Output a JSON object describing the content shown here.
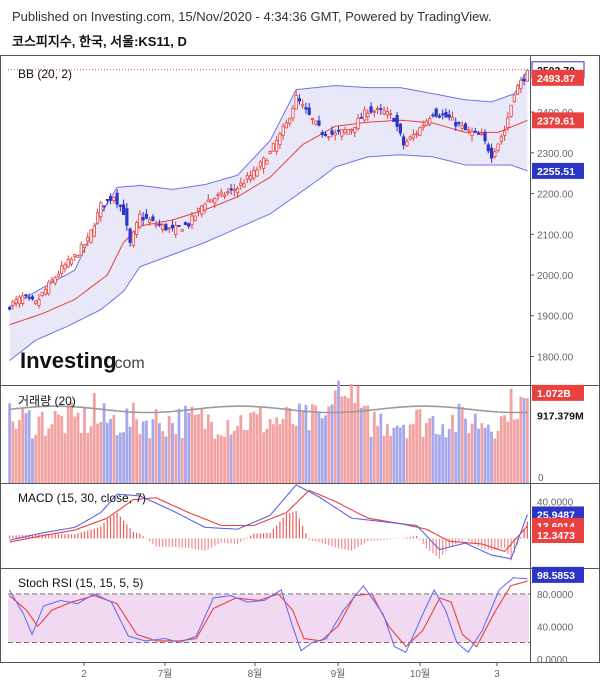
{
  "header": {
    "published": "Published on Investing.com, 15/Nov/2020 - 4:34:36 GMT, Powered by TradingView.",
    "symbol": "코스피지수, 한국, 서울:KS11, D"
  },
  "watermark": {
    "brand": "Investing",
    "suffix": ".com"
  },
  "colors": {
    "up": "#e8413f",
    "down": "#2d35c7",
    "band": "#6f73e6",
    "band_fill": "#e6e6f7",
    "basis": "#e8413f",
    "volume_up": "#f3a2a2",
    "volume_down": "#a6a8ee",
    "volume_ma": "#9a9a9a",
    "macd": "#5b64e8",
    "signal": "#e8413f",
    "stoch_k": "#6b6ff0",
    "stoch_d": "#e8413f",
    "rsi_band": "#f1d9f1"
  },
  "chart_data": [
    {
      "type": "candlestick",
      "panel": "price",
      "title": "BB (20, 2)",
      "ylim": [
        1730,
        2540
      ],
      "y_ticks": [
        "2400.00",
        "2300.00",
        "2200.00",
        "2100.00",
        "2000.00",
        "1900.00",
        "1800.00"
      ],
      "x_ticks": [
        "2",
        "7월",
        "8월",
        "9월",
        "10월",
        "3"
      ],
      "last_price_line": 2503.7,
      "tags": [
        {
          "label": "2503.70",
          "value": 2503.7,
          "style": "outline"
        },
        {
          "label": "2493.87",
          "value": 2493.87,
          "style": "red"
        },
        {
          "label": "2379.61",
          "value": 2379.61,
          "style": "red"
        },
        {
          "label": "2255.51",
          "value": 2255.51,
          "style": "blue"
        }
      ],
      "close_anchors": [
        [
          0,
          1925
        ],
        [
          4,
          1945
        ],
        [
          8,
          1930
        ],
        [
          12,
          1975
        ],
        [
          16,
          2015
        ],
        [
          20,
          2045
        ],
        [
          24,
          2085
        ],
        [
          28,
          2170
        ],
        [
          32,
          2195
        ],
        [
          35,
          2155
        ],
        [
          37,
          2075
        ],
        [
          40,
          2145
        ],
        [
          45,
          2125
        ],
        [
          50,
          2110
        ],
        [
          55,
          2125
        ],
        [
          60,
          2180
        ],
        [
          65,
          2195
        ],
        [
          70,
          2215
        ],
        [
          75,
          2250
        ],
        [
          80,
          2300
        ],
        [
          85,
          2370
        ],
        [
          88,
          2435
        ],
        [
          92,
          2390
        ],
        [
          96,
          2350
        ],
        [
          100,
          2345
        ],
        [
          105,
          2360
        ],
        [
          110,
          2405
        ],
        [
          115,
          2400
        ],
        [
          118,
          2385
        ],
        [
          121,
          2320
        ],
        [
          125,
          2350
        ],
        [
          130,
          2400
        ],
        [
          135,
          2385
        ],
        [
          140,
          2355
        ],
        [
          145,
          2340
        ],
        [
          148,
          2295
        ],
        [
          152,
          2355
        ],
        [
          155,
          2450
        ],
        [
          158,
          2485
        ],
        [
          159,
          2493.87
        ]
      ],
      "bb_basis_anchors": [
        [
          0,
          1878
        ],
        [
          10,
          1905
        ],
        [
          20,
          1940
        ],
        [
          30,
          2000
        ],
        [
          35,
          2080
        ],
        [
          40,
          2120
        ],
        [
          50,
          2135
        ],
        [
          60,
          2160
        ],
        [
          70,
          2192
        ],
        [
          80,
          2240
        ],
        [
          90,
          2320
        ],
        [
          100,
          2365
        ],
        [
          110,
          2375
        ],
        [
          120,
          2380
        ],
        [
          130,
          2373
        ],
        [
          140,
          2350
        ],
        [
          150,
          2350
        ],
        [
          159,
          2379.61
        ]
      ],
      "bb_upper_anchors": [
        [
          0,
          1922
        ],
        [
          10,
          1968
        ],
        [
          20,
          2012
        ],
        [
          28,
          2150
        ],
        [
          33,
          2215
        ],
        [
          40,
          2220
        ],
        [
          50,
          2210
        ],
        [
          60,
          2222
        ],
        [
          70,
          2245
        ],
        [
          80,
          2330
        ],
        [
          88,
          2455
        ],
        [
          100,
          2465
        ],
        [
          110,
          2460
        ],
        [
          120,
          2460
        ],
        [
          130,
          2445
        ],
        [
          140,
          2430
        ],
        [
          148,
          2425
        ],
        [
          155,
          2445
        ],
        [
          159,
          2503.7
        ]
      ],
      "bb_lower_anchors": [
        [
          0,
          1790
        ],
        [
          8,
          1840
        ],
        [
          18,
          1875
        ],
        [
          28,
          1915
        ],
        [
          35,
          1960
        ],
        [
          40,
          2020
        ],
        [
          50,
          2050
        ],
        [
          60,
          2080
        ],
        [
          70,
          2115
        ],
        [
          80,
          2150
        ],
        [
          88,
          2195
        ],
        [
          95,
          2235
        ],
        [
          100,
          2265
        ],
        [
          110,
          2290
        ],
        [
          120,
          2295
        ],
        [
          130,
          2290
        ],
        [
          140,
          2270
        ],
        [
          148,
          2270
        ],
        [
          154,
          2270
        ],
        [
          159,
          2255.51
        ]
      ]
    },
    {
      "type": "bar",
      "panel": "volume",
      "title": "거래량 (20)",
      "ylim": [
        0,
        1.22
      ],
      "unit": "B",
      "y_ticks": [
        "0"
      ],
      "tags": [
        {
          "label": "1.072B",
          "value": 1.072,
          "style": "red"
        },
        {
          "label": "917.379M",
          "value": 0.917,
          "style": "dark"
        }
      ],
      "ma_level": 0.917
    },
    {
      "type": "line",
      "panel": "macd",
      "title": "MACD (15, 30, close, 7)",
      "ylim": [
        -32,
        60
      ],
      "y_ticks": [
        "40.0000"
      ],
      "tags": [
        {
          "label": "25.9487",
          "value": 25.9487,
          "style": "blue"
        },
        {
          "label": "13.6014",
          "value": 13.6014,
          "style": "red"
        },
        {
          "label": "12.3473",
          "value": 12.3473,
          "style": "red"
        }
      ],
      "series": [
        {
          "name": "MACD",
          "anchors": [
            [
              0,
              -2
            ],
            [
              10,
              6
            ],
            [
              20,
              12
            ],
            [
              28,
              28
            ],
            [
              33,
              48
            ],
            [
              40,
              46
            ],
            [
              50,
              30
            ],
            [
              60,
              12
            ],
            [
              70,
              10
            ],
            [
              80,
              25
            ],
            [
              88,
              58
            ],
            [
              95,
              45
            ],
            [
              105,
              22
            ],
            [
              115,
              18
            ],
            [
              125,
              14
            ],
            [
              132,
              -12
            ],
            [
              140,
              -5
            ],
            [
              148,
              -18
            ],
            [
              154,
              -22
            ],
            [
              159,
              25.95
            ]
          ]
        },
        {
          "name": "Signal",
          "anchors": [
            [
              0,
              -4
            ],
            [
              10,
              3
            ],
            [
              20,
              9
            ],
            [
              30,
              22
            ],
            [
              38,
              42
            ],
            [
              45,
              44
            ],
            [
              55,
              28
            ],
            [
              65,
              14
            ],
            [
              75,
              14
            ],
            [
              85,
              28
            ],
            [
              92,
              52
            ],
            [
              100,
              40
            ],
            [
              110,
              22
            ],
            [
              120,
              16
            ],
            [
              128,
              10
            ],
            [
              135,
              -3
            ],
            [
              145,
              -6
            ],
            [
              152,
              -14
            ],
            [
              159,
              13.6
            ]
          ]
        }
      ],
      "histogram_last": 12.3473
    },
    {
      "type": "line",
      "panel": "stoch_rsi",
      "title": "Stoch RSI (15, 15, 5, 5)",
      "ylim": [
        -4,
        112
      ],
      "y_ticks": [
        "80.0000",
        "40.0000",
        "0.0000"
      ],
      "bands": [
        20,
        80
      ],
      "tags": [
        {
          "label": "98.5853",
          "value": 98.5853,
          "style": "blue"
        }
      ],
      "series": [
        {
          "name": "K",
          "anchors": [
            [
              0,
              85
            ],
            [
              5,
              55
            ],
            [
              8,
              30
            ],
            [
              12,
              65
            ],
            [
              18,
              72
            ],
            [
              24,
              68
            ],
            [
              30,
              80
            ],
            [
              36,
              70
            ],
            [
              42,
              28
            ],
            [
              48,
              22
            ],
            [
              55,
              25
            ],
            [
              60,
              20
            ],
            [
              66,
              28
            ],
            [
              72,
              75
            ],
            [
              78,
              78
            ],
            [
              84,
              70
            ],
            [
              90,
              72
            ],
            [
              96,
              85
            ],
            [
              100,
              40
            ],
            [
              103,
              10
            ],
            [
              107,
              20
            ],
            [
              112,
              25
            ],
            [
              118,
              60
            ],
            [
              125,
              90
            ],
            [
              132,
              55
            ],
            [
              136,
              15
            ],
            [
              140,
              8
            ],
            [
              146,
              55
            ],
            [
              150,
              85
            ],
            [
              154,
              60
            ],
            [
              158,
              20
            ],
            [
              162,
              8
            ],
            [
              167,
              35
            ],
            [
              173,
              85
            ],
            [
              178,
              100
            ],
            [
              183,
              98.59
            ]
          ]
        },
        {
          "name": "D",
          "anchors": [
            [
              0,
              78
            ],
            [
              6,
              60
            ],
            [
              10,
              40
            ],
            [
              15,
              60
            ],
            [
              22,
              70
            ],
            [
              30,
              78
            ],
            [
              38,
              68
            ],
            [
              45,
              30
            ],
            [
              52,
              22
            ],
            [
              60,
              22
            ],
            [
              66,
              25
            ],
            [
              72,
              62
            ],
            [
              80,
              75
            ],
            [
              88,
              72
            ],
            [
              95,
              80
            ],
            [
              100,
              60
            ],
            [
              104,
              25
            ],
            [
              110,
              22
            ],
            [
              116,
              40
            ],
            [
              122,
              78
            ],
            [
              128,
              80
            ],
            [
              134,
              40
            ],
            [
              140,
              15
            ],
            [
              146,
              35
            ],
            [
              152,
              75
            ],
            [
              156,
              70
            ],
            [
              160,
              30
            ],
            [
              165,
              15
            ],
            [
              171,
              55
            ],
            [
              177,
              90
            ],
            [
              183,
              96
            ]
          ]
        }
      ]
    }
  ]
}
